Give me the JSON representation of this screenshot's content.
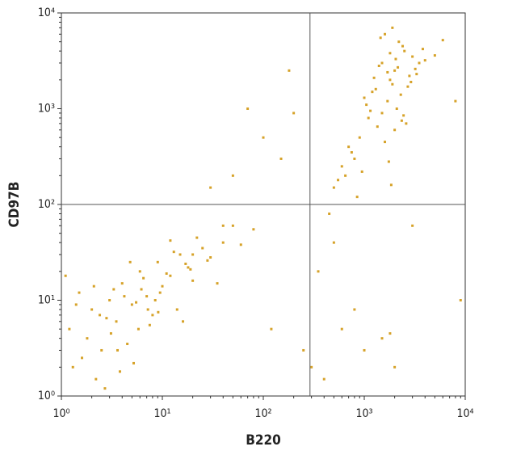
{
  "chart_data": {
    "type": "scatter",
    "xlabel": "B220",
    "ylabel": "CD97B",
    "color": "#d6a229",
    "xscale": "log",
    "yscale": "log",
    "xlim": [
      1,
      10000
    ],
    "ylim": [
      1,
      10000
    ],
    "xticks": [
      {
        "value": 1,
        "label": "10⁰"
      },
      {
        "value": 10,
        "label": "10¹"
      },
      {
        "value": 100,
        "label": "10²"
      },
      {
        "value": 1000,
        "label": "10³"
      },
      {
        "value": 10000,
        "label": "10⁴"
      }
    ],
    "yticks": [
      {
        "value": 1,
        "label": "10⁰"
      },
      {
        "value": 10,
        "label": "10¹"
      },
      {
        "value": 100,
        "label": "10²"
      },
      {
        "value": 1000,
        "label": "10³"
      },
      {
        "value": 10000,
        "label": "10⁴"
      }
    ],
    "quadrant": [
      290,
      100
    ],
    "x": [
      1.2,
      1.5,
      2,
      2.5,
      3,
      3.5,
      4,
      5,
      6,
      7,
      8,
      9,
      10,
      12,
      15,
      18,
      20,
      25,
      30,
      40,
      1.3,
      1.8,
      2.2,
      2.8,
      3.3,
      4.5,
      5.5,
      6.5,
      7.5,
      9.5,
      11,
      14,
      17,
      22,
      28,
      35,
      50,
      60,
      80,
      1.1,
      1.6,
      2.4,
      3.1,
      3.8,
      4.2,
      5.2,
      6.2,
      8.5,
      13,
      16,
      2.7,
      3.6,
      4.8,
      1.4,
      2.1,
      5.8,
      7.2,
      9.1,
      12,
      19,
      1500,
      2000,
      2500,
      1800,
      3000,
      1200,
      2200,
      1700,
      3500,
      1400,
      2800,
      1900,
      2400,
      1600,
      4000,
      1100,
      2100,
      3200,
      1300,
      2600,
      900,
      800,
      1000,
      700,
      600,
      1500,
      2000,
      1800,
      1250,
      2300,
      500,
      650,
      1700,
      2700,
      3800,
      5000,
      1900,
      1450,
      2150,
      1050,
      750,
      1350,
      2450,
      550,
      1600,
      2900,
      1750,
      1150,
      950,
      2050,
      1850,
      3300,
      6000,
      850,
      2350,
      300,
      400,
      600,
      1000,
      1500,
      2000,
      350,
      500,
      800,
      100,
      150,
      200,
      50,
      70,
      30,
      20,
      40,
      120,
      250,
      180,
      9000,
      8000,
      3000,
      1800,
      450
    ],
    "y": [
      5,
      12,
      8,
      3,
      10,
      6,
      15,
      9,
      20,
      11,
      7,
      25,
      14,
      18,
      30,
      22,
      16,
      35,
      28,
      40,
      2,
      4,
      1.5,
      6.5,
      13,
      3.5,
      9.5,
      17,
      5.5,
      12,
      19,
      8,
      24,
      45,
      26,
      15,
      60,
      38,
      55,
      18,
      2.5,
      7,
      4.5,
      1.8,
      11,
      2.2,
      13,
      10,
      32,
      6,
      1.2,
      3,
      25,
      9,
      14,
      5,
      8,
      7.5,
      42,
      21,
      3000,
      2500,
      4000,
      2000,
      3500,
      1500,
      5000,
      1200,
      3000,
      2800,
      2200,
      1800,
      4500,
      6000,
      3200,
      800,
      1000,
      2600,
      1600,
      700,
      500,
      300,
      1300,
      400,
      250,
      900,
      600,
      3800,
      2100,
      1400,
      150,
      200,
      2400,
      1700,
      4200,
      3600,
      7000,
      5500,
      2700,
      1100,
      350,
      650,
      850,
      180,
      450,
      1900,
      280,
      950,
      220,
      3300,
      160,
      2300,
      5200,
      120,
      750,
      2,
      1.5,
      5,
      3,
      4,
      2,
      20,
      40,
      8,
      500,
      300,
      900,
      200,
      1000,
      150,
      30,
      60,
      5,
      3,
      2500,
      10,
      1200,
      60,
      4.5,
      80
    ]
  }
}
